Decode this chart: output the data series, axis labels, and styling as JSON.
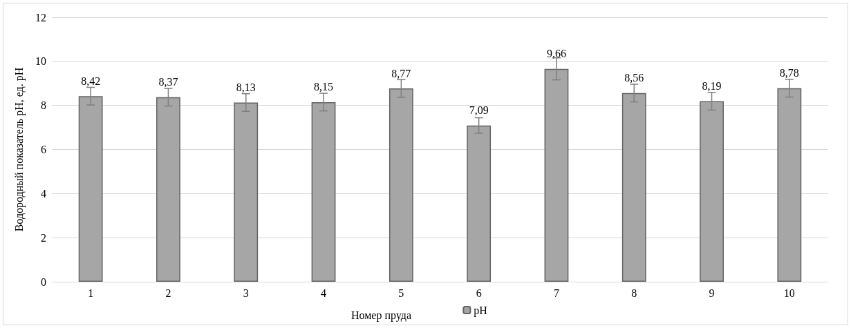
{
  "chart_data": {
    "type": "bar",
    "xlabel": "Номер пруда",
    "ylabel": "Водородный показатель pH, ед. pH",
    "categories": [
      "1",
      "2",
      "3",
      "4",
      "5",
      "6",
      "7",
      "8",
      "9",
      "10"
    ],
    "series": [
      {
        "name": "pH",
        "color": "#a6a6a6",
        "values": [
          8.42,
          8.37,
          8.13,
          8.15,
          8.77,
          7.09,
          9.66,
          8.56,
          8.19,
          8.78
        ],
        "value_labels": [
          "8,42",
          "8,37",
          "8,13",
          "8,15",
          "8,77",
          "7,09",
          "9,66",
          "8,56",
          "8,19",
          "8,78"
        ],
        "errors": [
          0.4,
          0.4,
          0.4,
          0.4,
          0.4,
          0.35,
          0.5,
          0.4,
          0.4,
          0.4
        ]
      }
    ],
    "ylim": [
      0,
      12
    ],
    "yticks": [
      0,
      2,
      4,
      6,
      8,
      10,
      12
    ],
    "grid": "y",
    "legend": "bottom"
  }
}
